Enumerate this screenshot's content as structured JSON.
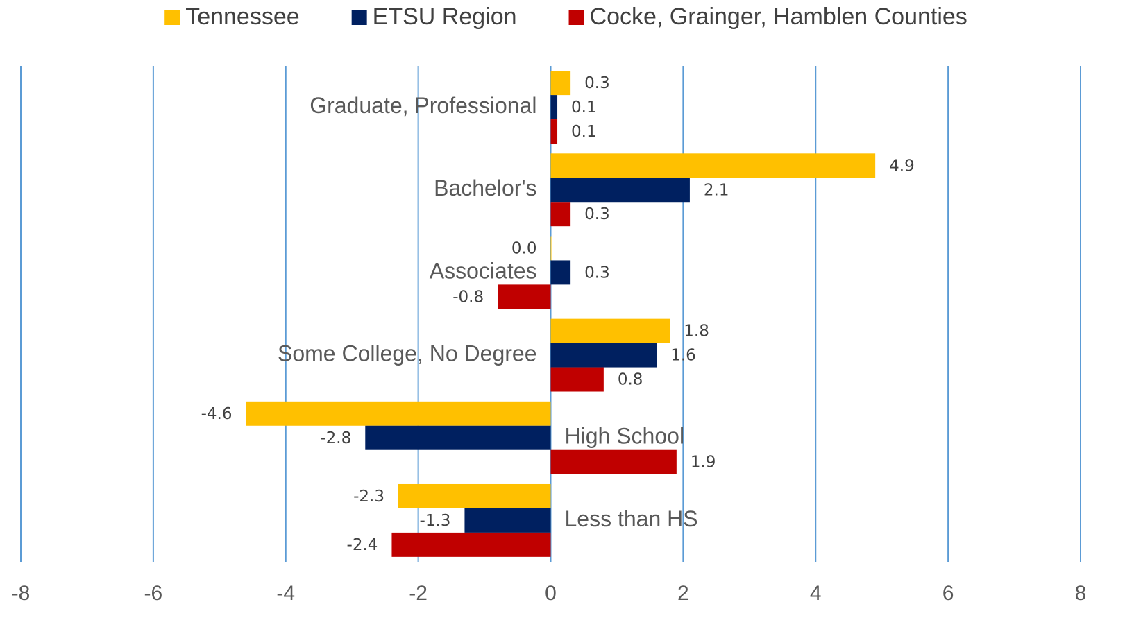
{
  "chart_data": {
    "type": "hbar",
    "categories": [
      "Graduate, Professional",
      "Bachelor's",
      "Associates",
      "Some College, No Degree",
      "High School",
      "Less than HS"
    ],
    "series": [
      {
        "name": "Tennessee",
        "color": "#ffc000",
        "values": [
          0.3,
          4.9,
          0.0,
          1.8,
          -4.6,
          -2.3
        ],
        "value_labels": [
          "0.3",
          "4.9",
          "0.0",
          "1.8",
          "-4.6",
          "-2.3"
        ]
      },
      {
        "name": "ETSU Region",
        "color": "#002060",
        "values": [
          0.1,
          2.1,
          0.3,
          1.6,
          -2.8,
          -1.3
        ]
      },
      {
        "name": "Cocke, Grainger, Hamblen Counties",
        "color": "#c00000",
        "values": [
          0.1,
          0.3,
          -0.8,
          0.8,
          1.9,
          -2.4
        ]
      }
    ],
    "xlim": [
      -8,
      8
    ],
    "xticks": [
      -8,
      -6,
      -4,
      -2,
      0,
      2,
      4,
      6,
      8
    ],
    "grid": true,
    "grid_color": "#5b9bd5",
    "legend": "top"
  }
}
